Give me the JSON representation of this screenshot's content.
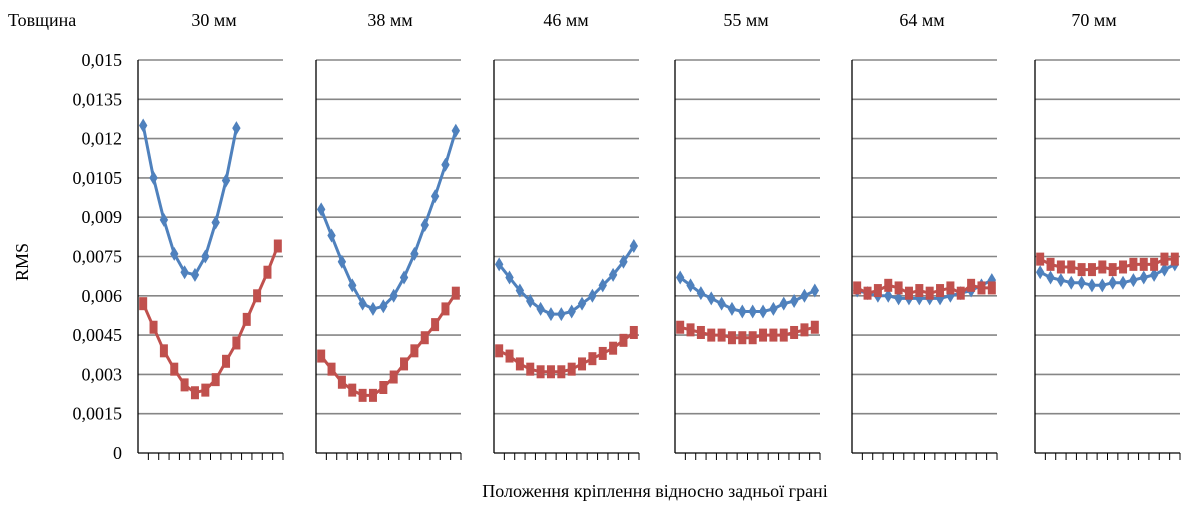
{
  "chart_data": {
    "type": "line",
    "corner_label": "Товщина",
    "xlabel": "Положення кріплення відносно задньої грані",
    "ylabel": "RMS",
    "ylim": [
      0,
      0.015
    ],
    "y_ticks": [
      0,
      0.0015,
      0.003,
      0.0045,
      0.006,
      0.0075,
      0.009,
      0.0105,
      0.012,
      0.0135,
      0.015
    ],
    "y_tick_labels": [
      "0",
      "0,0015",
      "0,003",
      "0,0045",
      "0,006",
      "0,0075",
      "0,009",
      "0,0105",
      "0,012",
      "0,0135",
      "0,015"
    ],
    "x_tick_count": 14,
    "grid": true,
    "legend": "none",
    "colors": {
      "blue": "#4F81BD",
      "red": "#C0504D",
      "grid": "#868686",
      "axis": "#000000"
    },
    "panels": [
      {
        "title": "30 мм",
        "series": [
          {
            "color": "blue",
            "marker": "diamond",
            "x_start": 0,
            "values": [
              0.0125,
              0.0105,
              0.0089,
              0.0076,
              0.0069,
              0.0068,
              0.0075,
              0.0088,
              0.0104,
              0.0124
            ]
          },
          {
            "color": "red",
            "marker": "square",
            "x_start": 0,
            "values": [
              0.0057,
              0.0048,
              0.0039,
              0.0032,
              0.0026,
              0.0023,
              0.0024,
              0.0028,
              0.0035,
              0.0042,
              0.0051,
              0.006,
              0.0069,
              0.0079
            ]
          }
        ]
      },
      {
        "title": "38 мм",
        "series": [
          {
            "color": "blue",
            "marker": "diamond",
            "x_start": 0,
            "values": [
              0.0093,
              0.0083,
              0.0073,
              0.0064,
              0.0057,
              0.0055,
              0.0056,
              0.006,
              0.0067,
              0.0076,
              0.0087,
              0.0098,
              0.011,
              0.0123
            ]
          },
          {
            "color": "red",
            "marker": "square",
            "x_start": 0,
            "values": [
              0.0037,
              0.0032,
              0.0027,
              0.0024,
              0.0022,
              0.0022,
              0.0025,
              0.0029,
              0.0034,
              0.0039,
              0.0044,
              0.0049,
              0.0055,
              0.0061
            ]
          }
        ]
      },
      {
        "title": "46 мм",
        "series": [
          {
            "color": "blue",
            "marker": "diamond",
            "x_start": 0,
            "values": [
              0.0072,
              0.0067,
              0.0062,
              0.0058,
              0.0055,
              0.0053,
              0.0053,
              0.0054,
              0.0057,
              0.006,
              0.0064,
              0.0068,
              0.0073,
              0.0079
            ]
          },
          {
            "color": "red",
            "marker": "square",
            "x_start": 0,
            "values": [
              0.0039,
              0.0037,
              0.0034,
              0.0032,
              0.0031,
              0.0031,
              0.0031,
              0.0032,
              0.0034,
              0.0036,
              0.0038,
              0.004,
              0.0043,
              0.0046
            ]
          }
        ]
      },
      {
        "title": "55 мм",
        "series": [
          {
            "color": "blue",
            "marker": "diamond",
            "x_start": 0,
            "values": [
              0.0067,
              0.0064,
              0.0061,
              0.0059,
              0.0057,
              0.0055,
              0.0054,
              0.0054,
              0.0054,
              0.0055,
              0.0057,
              0.0058,
              0.006,
              0.0062
            ]
          },
          {
            "color": "red",
            "marker": "square",
            "x_start": 0,
            "values": [
              0.0048,
              0.0047,
              0.0046,
              0.0045,
              0.0045,
              0.0044,
              0.0044,
              0.0044,
              0.0045,
              0.0045,
              0.0045,
              0.0046,
              0.0047,
              0.0048
            ]
          }
        ]
      },
      {
        "title": "64 мм",
        "series": [
          {
            "color": "blue",
            "marker": "diamond",
            "x_start": 0,
            "values": [
              0.0062,
              0.0061,
              0.006,
              0.006,
              0.0059,
              0.0059,
              0.0059,
              0.0059,
              0.0059,
              0.006,
              0.0061,
              0.0062,
              0.0064,
              0.0066
            ]
          },
          {
            "color": "red",
            "marker": "square",
            "x_start": 0,
            "values": [
              0.0063,
              0.0061,
              0.0062,
              0.0064,
              0.0063,
              0.0061,
              0.0062,
              0.0061,
              0.0062,
              0.0063,
              0.0061,
              0.0064,
              0.0063,
              0.0063
            ]
          }
        ]
      },
      {
        "title": "70 мм",
        "series": [
          {
            "color": "blue",
            "marker": "diamond",
            "x_start": 0,
            "values": [
              0.0069,
              0.0067,
              0.0066,
              0.0065,
              0.0065,
              0.0064,
              0.0064,
              0.0065,
              0.0065,
              0.0066,
              0.0067,
              0.0068,
              0.007,
              0.0072
            ]
          },
          {
            "color": "red",
            "marker": "square",
            "x_start": 0,
            "values": [
              0.0074,
              0.0072,
              0.0071,
              0.0071,
              0.007,
              0.007,
              0.0071,
              0.007,
              0.0071,
              0.0072,
              0.0072,
              0.0072,
              0.0074,
              0.0074
            ]
          }
        ]
      }
    ]
  }
}
